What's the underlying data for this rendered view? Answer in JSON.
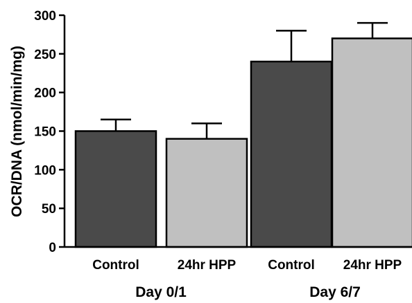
{
  "chart_data": {
    "type": "bar",
    "ylabel": "OCR/DNA (nmol/min/mg)",
    "xlabel": "",
    "ylim": [
      0,
      300
    ],
    "yticks": [
      0,
      50,
      100,
      150,
      200,
      250,
      300
    ],
    "grid": false,
    "categories": [
      "Control",
      "24hr HPP",
      "Control",
      "24hr HPP"
    ],
    "groups": [
      "Day 0/1",
      "Day 6/7"
    ],
    "values": [
      150,
      140,
      240,
      270
    ],
    "errors": [
      15,
      20,
      40,
      20
    ],
    "bar_colors": [
      "#4a4a4a",
      "#c0c0c0",
      "#4a4a4a",
      "#c0c0c0"
    ]
  }
}
